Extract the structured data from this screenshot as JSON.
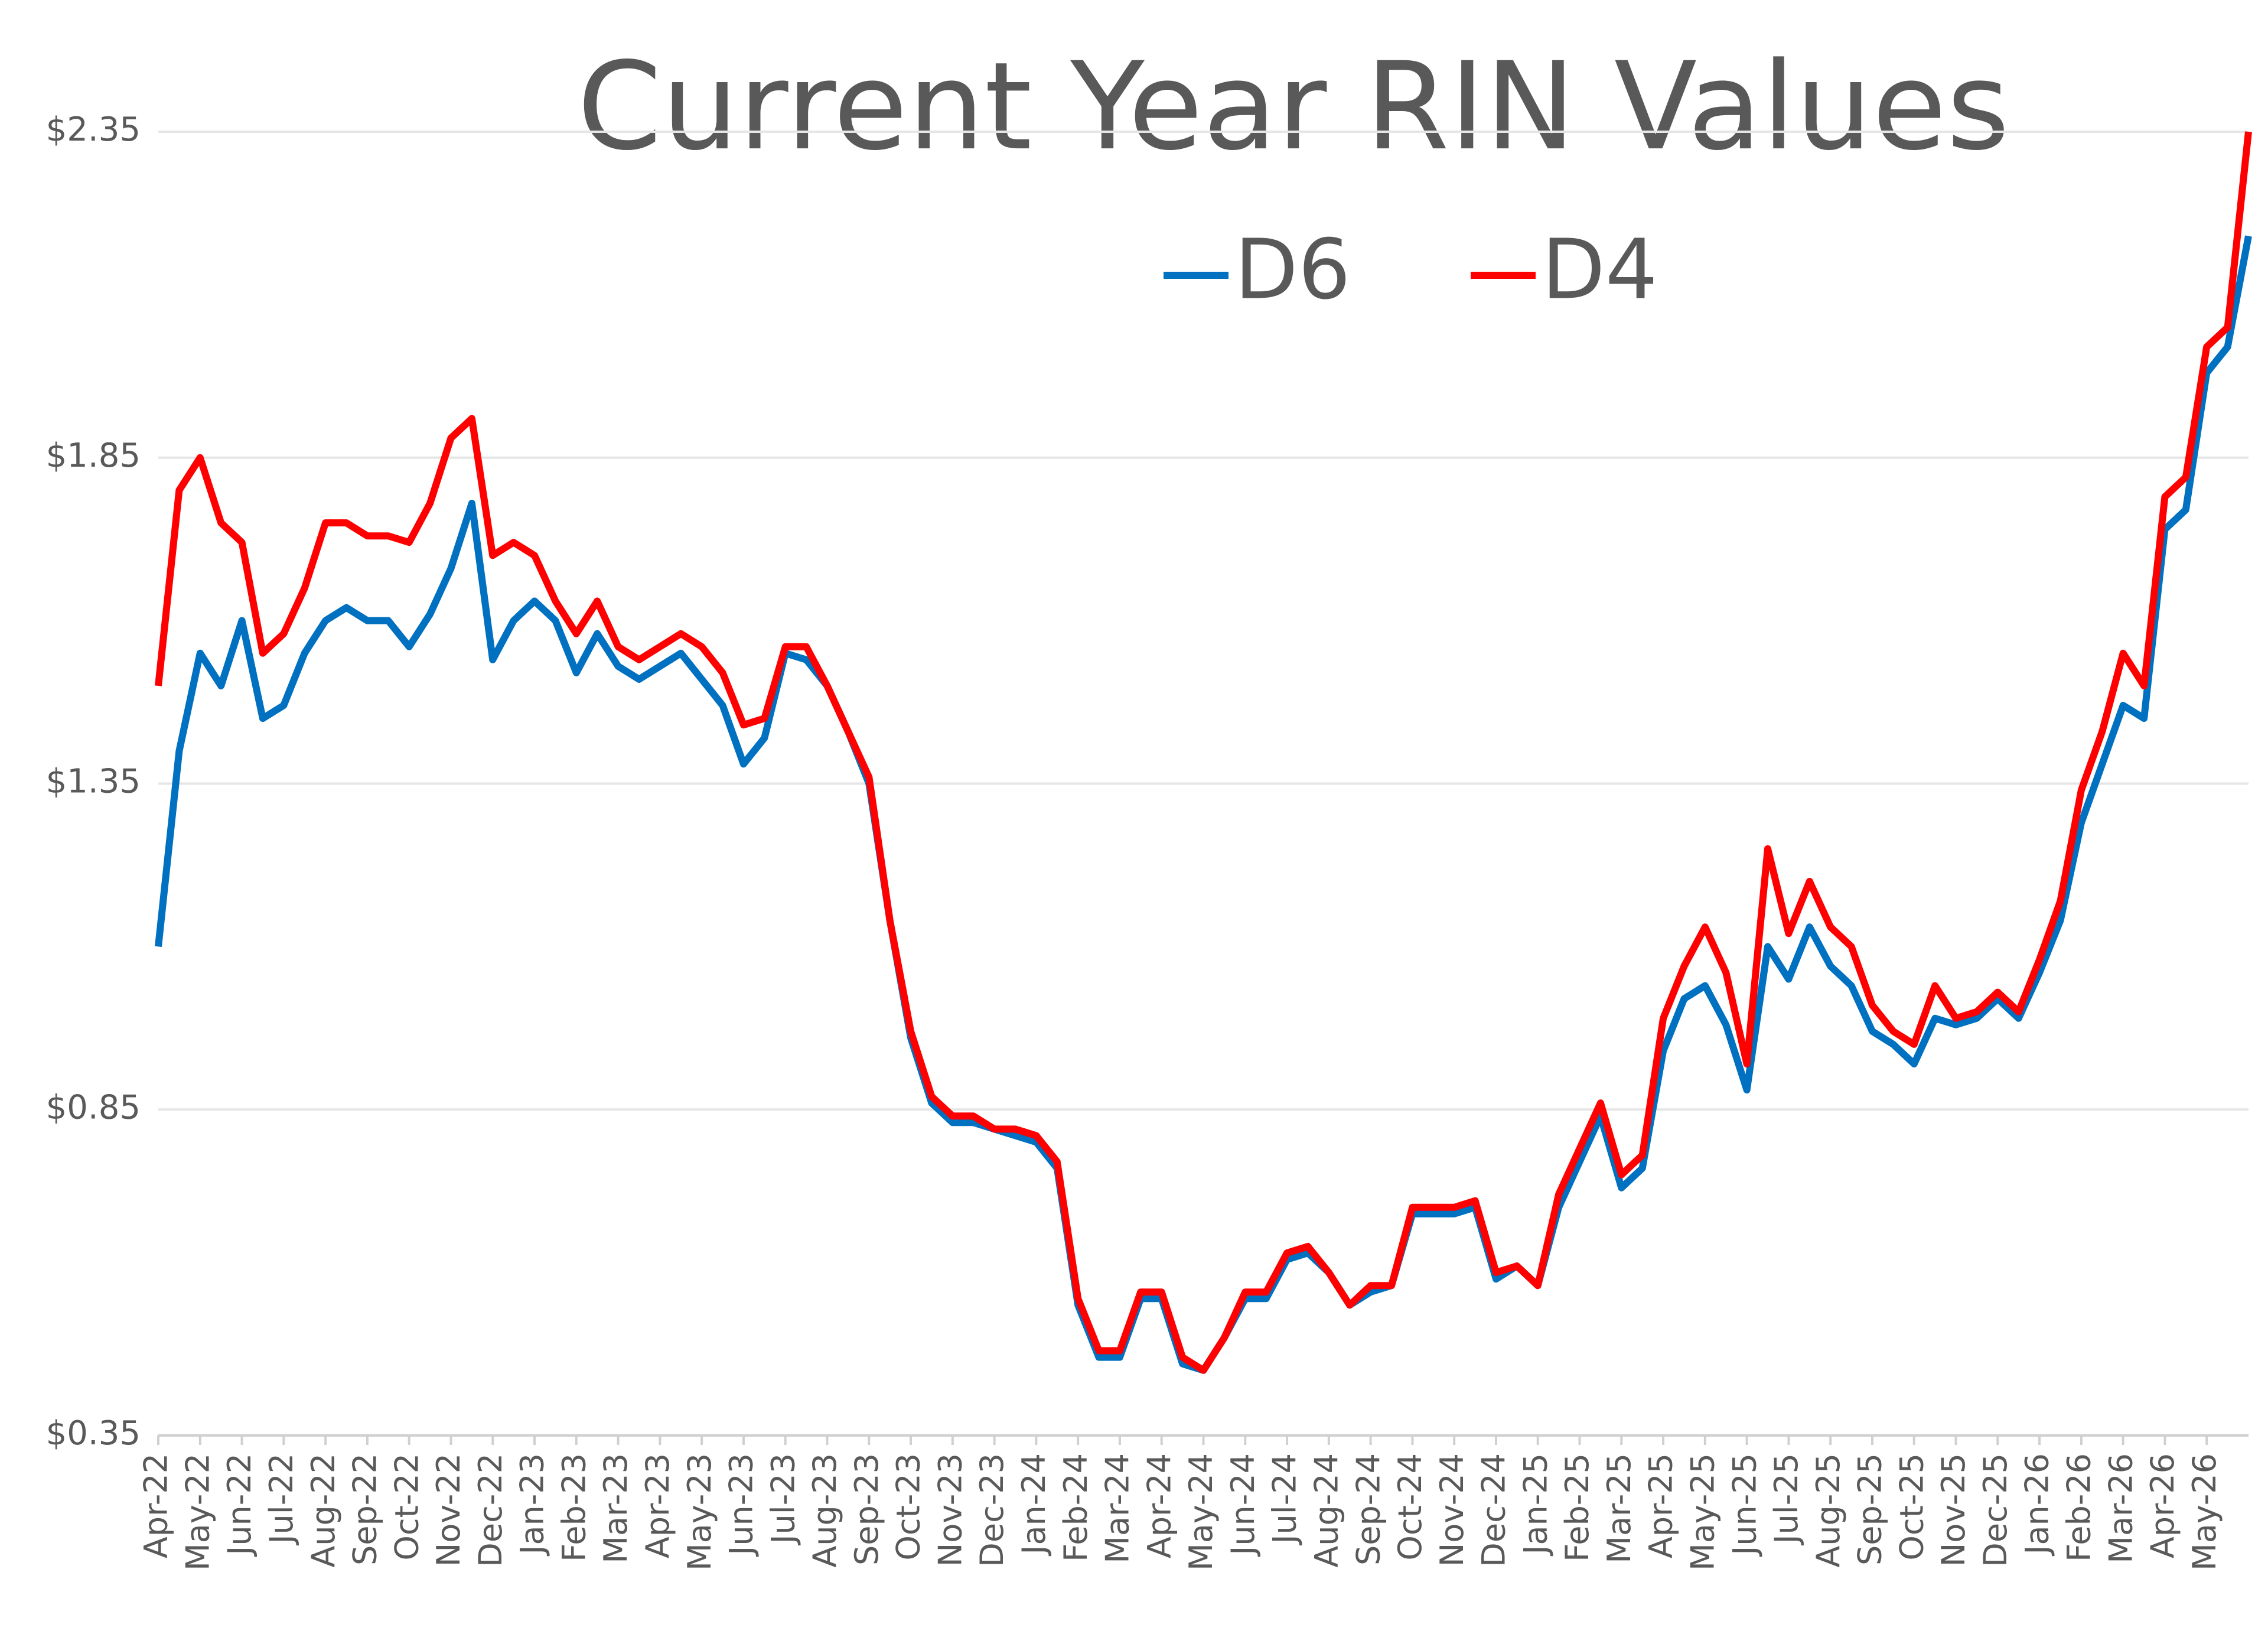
{
  "chart_data": {
    "type": "line",
    "title": "Current Year RIN Values",
    "categories": [
      "Apr-22",
      null,
      "May-22",
      null,
      "Jun-22",
      null,
      "Jul-22",
      null,
      "Aug-22",
      null,
      "Sep-22",
      null,
      "Oct-22",
      null,
      "Nov-22",
      null,
      "Dec-22",
      null,
      "Jan-23",
      null,
      "Feb-23",
      null,
      "Mar-23",
      null,
      "Apr-23",
      null,
      "May-23",
      null,
      "Jun-23",
      null,
      "Jul-23",
      null,
      "Aug-23",
      null,
      "Sep-23",
      null,
      "Oct-23",
      null,
      "Nov-23",
      null,
      "Dec-23",
      null,
      "Jan-24",
      null,
      "Feb-24",
      null,
      "Mar-24",
      null,
      "Apr-24",
      null,
      "May-24",
      null,
      "Jun-24",
      null,
      "Jul-24",
      null,
      "Aug-24",
      null,
      "Sep-24",
      null,
      "Oct-24",
      null,
      "Nov-24",
      null,
      "Dec-24",
      null,
      "Jan-25",
      null,
      "Feb-25",
      null,
      "Mar-25",
      null,
      "Apr-25",
      null,
      "May-25",
      null,
      "Jun-25",
      null,
      "Jul-25",
      null,
      "Aug-25",
      null,
      "Sep-25",
      null,
      "Oct-25",
      null,
      "Nov-25",
      null,
      "Dec-25",
      null,
      "Jan-26",
      null,
      "Feb-26",
      null,
      "Mar-26",
      null,
      "Apr-26",
      null,
      "May-26",
      null,
      null
    ],
    "series": [
      {
        "name": "D6",
        "color": "#0070c0",
        "values": [
          1.1,
          1.4,
          1.55,
          1.5,
          1.6,
          1.45,
          1.47,
          1.55,
          1.6,
          1.62,
          1.6,
          1.6,
          1.56,
          1.61,
          1.68,
          1.78,
          1.54,
          1.6,
          1.63,
          1.6,
          1.52,
          1.58,
          1.53,
          1.51,
          1.53,
          1.55,
          1.51,
          1.47,
          1.38,
          1.42,
          1.55,
          1.54,
          1.5,
          1.43,
          1.35,
          1.14,
          0.96,
          0.86,
          0.83,
          0.83,
          0.82,
          0.81,
          0.8,
          0.76,
          0.55,
          0.47,
          0.47,
          0.56,
          0.56,
          0.46,
          0.45,
          0.5,
          0.56,
          0.56,
          0.62,
          0.63,
          0.6,
          0.55,
          0.57,
          0.58,
          0.69,
          0.69,
          0.69,
          0.7,
          0.59,
          0.61,
          0.58,
          0.7,
          0.77,
          0.84,
          0.73,
          0.76,
          0.94,
          1.02,
          1.04,
          0.98,
          0.88,
          1.1,
          1.05,
          1.13,
          1.07,
          1.04,
          0.97,
          0.95,
          0.92,
          0.99,
          0.98,
          0.99,
          1.02,
          0.99,
          1.06,
          1.14,
          1.29,
          1.38,
          1.47,
          1.45,
          1.74,
          1.77,
          1.98,
          2.02,
          2.19
        ]
      },
      {
        "name": "D4",
        "color": "#ff0000",
        "values": [
          1.5,
          1.8,
          1.85,
          1.75,
          1.72,
          1.55,
          1.58,
          1.65,
          1.75,
          1.75,
          1.73,
          1.73,
          1.72,
          1.78,
          1.88,
          1.91,
          1.7,
          1.72,
          1.7,
          1.63,
          1.58,
          1.63,
          1.56,
          1.54,
          1.56,
          1.58,
          1.56,
          1.52,
          1.44,
          1.45,
          1.56,
          1.56,
          1.5,
          1.43,
          1.36,
          1.14,
          0.97,
          0.87,
          0.84,
          0.84,
          0.82,
          0.82,
          0.81,
          0.77,
          0.56,
          0.48,
          0.48,
          0.57,
          0.57,
          0.47,
          0.45,
          0.5,
          0.57,
          0.57,
          0.63,
          0.64,
          0.6,
          0.55,
          0.58,
          0.58,
          0.7,
          0.7,
          0.7,
          0.71,
          0.6,
          0.61,
          0.58,
          0.72,
          0.79,
          0.86,
          0.75,
          0.78,
          0.99,
          1.07,
          1.13,
          1.06,
          0.92,
          1.25,
          1.12,
          1.2,
          1.13,
          1.1,
          1.01,
          0.97,
          0.95,
          1.04,
          0.99,
          1.0,
          1.03,
          1.0,
          1.08,
          1.17,
          1.34,
          1.43,
          1.55,
          1.5,
          1.79,
          1.82,
          2.02,
          2.05,
          2.35
        ]
      }
    ],
    "ylim": [
      0.35,
      2.35
    ],
    "yticks": [
      {
        "value": 0.35,
        "label": "$0.35"
      },
      {
        "value": 0.85,
        "label": "$0.85"
      },
      {
        "value": 1.35,
        "label": "$1.35"
      },
      {
        "value": 1.85,
        "label": "$1.85"
      },
      {
        "value": 2.35,
        "label": "$2.35"
      }
    ],
    "grid": true,
    "legend": "top"
  }
}
